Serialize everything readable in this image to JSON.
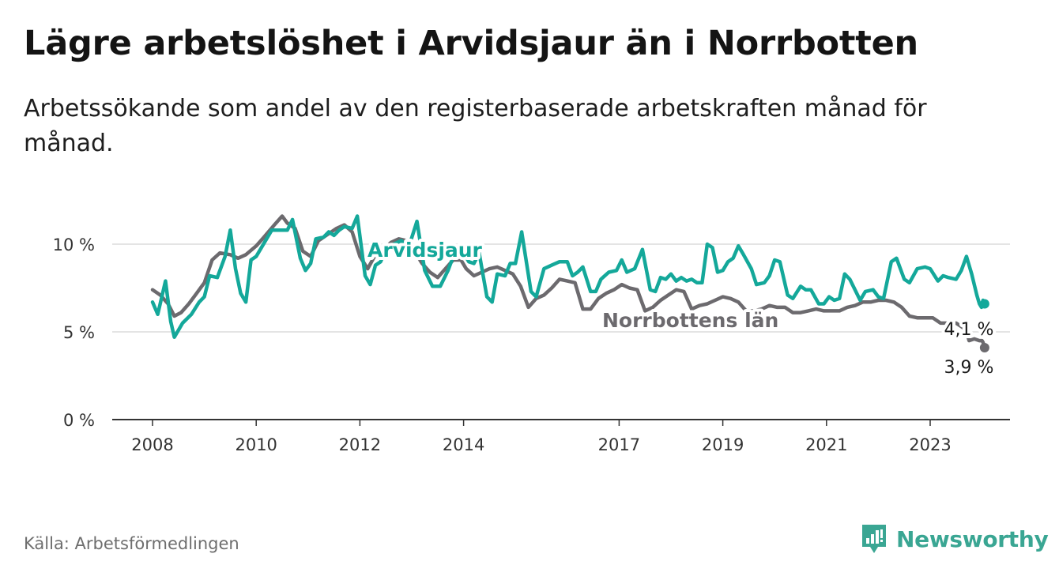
{
  "title": "Lägre arbetslöshet i Arvidsjaur än i Norrbotten",
  "subtitle": "Arbetssökande som andel av den registerbaserade arbetskraften månad för månad.",
  "source": "Källa: Arbetsförmedlingen",
  "brand": {
    "name": "Newsworthy",
    "icon": "newsworthy-logo-icon",
    "color": "#3aa693"
  },
  "chart_data": {
    "type": "line",
    "title": "Lägre arbetslöshet i Arvidsjaur än i Norrbotten",
    "xlabel": "",
    "ylabel": "",
    "ylim": [
      0,
      10
    ],
    "xlim": [
      2008.0,
      2024.05
    ],
    "grid": true,
    "y_ticks": [
      0,
      5,
      10
    ],
    "y_tick_labels": [
      "0 %",
      "5 %",
      "10 %"
    ],
    "x_ticks": [
      2008,
      2010,
      2012,
      2014,
      2017,
      2019,
      2021,
      2023
    ],
    "x_tick_labels": [
      "2008",
      "2010",
      "2012",
      "2014",
      "2017",
      "2019",
      "2021",
      "2023"
    ],
    "series": [
      {
        "name": "Arvidsjaur",
        "label": "Arvidsjaur",
        "color": "#14a89a",
        "end_label": "3,9 %",
        "points": [
          [
            2008.0,
            6.7
          ],
          [
            2008.1,
            6.0
          ],
          [
            2008.25,
            7.9
          ],
          [
            2008.35,
            5.6
          ],
          [
            2008.42,
            4.7
          ],
          [
            2008.58,
            5.5
          ],
          [
            2008.75,
            6.0
          ],
          [
            2008.9,
            6.7
          ],
          [
            2009.0,
            7.0
          ],
          [
            2009.1,
            8.2
          ],
          [
            2009.25,
            8.1
          ],
          [
            2009.4,
            9.3
          ],
          [
            2009.5,
            10.8
          ],
          [
            2009.6,
            8.6
          ],
          [
            2009.7,
            7.2
          ],
          [
            2009.8,
            6.7
          ],
          [
            2009.9,
            9.1
          ],
          [
            2010.0,
            9.3
          ],
          [
            2010.2,
            10.3
          ],
          [
            2010.3,
            10.8
          ],
          [
            2010.4,
            10.8
          ],
          [
            2010.5,
            10.8
          ],
          [
            2010.6,
            10.8
          ],
          [
            2010.7,
            11.4
          ],
          [
            2010.85,
            9.2
          ],
          [
            2010.95,
            8.5
          ],
          [
            2011.05,
            8.9
          ],
          [
            2011.15,
            10.3
          ],
          [
            2011.3,
            10.4
          ],
          [
            2011.4,
            10.7
          ],
          [
            2011.5,
            10.5
          ],
          [
            2011.6,
            10.8
          ],
          [
            2011.7,
            11.0
          ],
          [
            2011.85,
            10.9
          ],
          [
            2011.95,
            11.6
          ],
          [
            2012.1,
            8.2
          ],
          [
            2012.2,
            7.7
          ],
          [
            2012.3,
            8.8
          ],
          [
            2012.4,
            9.0
          ],
          [
            2012.5,
            9.7
          ],
          [
            2012.65,
            10.0
          ],
          [
            2012.8,
            10.2
          ],
          [
            2012.9,
            9.9
          ],
          [
            2012.95,
            9.9
          ],
          [
            2013.1,
            11.3
          ],
          [
            2013.25,
            8.5
          ],
          [
            2013.4,
            7.6
          ],
          [
            2013.55,
            7.6
          ],
          [
            2013.7,
            8.5
          ],
          [
            2013.8,
            9.3
          ],
          [
            2013.9,
            9.5
          ],
          [
            2014.0,
            9.5
          ],
          [
            2014.1,
            9.0
          ],
          [
            2014.2,
            8.9
          ],
          [
            2014.3,
            9.5
          ],
          [
            2014.45,
            7.0
          ],
          [
            2014.55,
            6.7
          ],
          [
            2014.65,
            8.3
          ],
          [
            2014.8,
            8.2
          ],
          [
            2014.9,
            8.9
          ],
          [
            2015.0,
            8.9
          ],
          [
            2015.12,
            10.7
          ],
          [
            2015.3,
            7.3
          ],
          [
            2015.4,
            7.0
          ],
          [
            2015.55,
            8.6
          ],
          [
            2015.7,
            8.8
          ],
          [
            2015.85,
            9.0
          ],
          [
            2016.0,
            9.0
          ],
          [
            2016.1,
            8.2
          ],
          [
            2016.2,
            8.4
          ],
          [
            2016.3,
            8.7
          ],
          [
            2016.45,
            7.3
          ],
          [
            2016.55,
            7.3
          ],
          [
            2016.65,
            8.0
          ],
          [
            2016.8,
            8.4
          ],
          [
            2016.95,
            8.5
          ],
          [
            2017.05,
            9.1
          ],
          [
            2017.15,
            8.4
          ],
          [
            2017.3,
            8.6
          ],
          [
            2017.45,
            9.7
          ],
          [
            2017.6,
            7.4
          ],
          [
            2017.7,
            7.3
          ],
          [
            2017.8,
            8.1
          ],
          [
            2017.9,
            8.0
          ],
          [
            2018.0,
            8.3
          ],
          [
            2018.1,
            7.9
          ],
          [
            2018.2,
            8.1
          ],
          [
            2018.3,
            7.9
          ],
          [
            2018.4,
            8.0
          ],
          [
            2018.5,
            7.8
          ],
          [
            2018.6,
            7.8
          ],
          [
            2018.7,
            10.0
          ],
          [
            2018.8,
            9.8
          ],
          [
            2018.9,
            8.4
          ],
          [
            2019.0,
            8.5
          ],
          [
            2019.1,
            9.0
          ],
          [
            2019.2,
            9.2
          ],
          [
            2019.3,
            9.9
          ],
          [
            2019.4,
            9.4
          ],
          [
            2019.55,
            8.6
          ],
          [
            2019.65,
            7.7
          ],
          [
            2019.8,
            7.8
          ],
          [
            2019.9,
            8.2
          ],
          [
            2020.0,
            9.1
          ],
          [
            2020.1,
            9.0
          ],
          [
            2020.25,
            7.1
          ],
          [
            2020.35,
            6.9
          ],
          [
            2020.5,
            7.6
          ],
          [
            2020.6,
            7.4
          ],
          [
            2020.7,
            7.4
          ],
          [
            2020.85,
            6.6
          ],
          [
            2020.95,
            6.6
          ],
          [
            2021.05,
            7.0
          ],
          [
            2021.15,
            6.8
          ],
          [
            2021.25,
            6.9
          ],
          [
            2021.35,
            8.3
          ],
          [
            2021.45,
            8.0
          ],
          [
            2021.55,
            7.4
          ],
          [
            2021.65,
            6.8
          ],
          [
            2021.75,
            7.3
          ],
          [
            2021.9,
            7.4
          ],
          [
            2022.0,
            7.0
          ],
          [
            2022.1,
            6.9
          ],
          [
            2022.25,
            9.0
          ],
          [
            2022.35,
            9.2
          ],
          [
            2022.5,
            8.0
          ],
          [
            2022.6,
            7.8
          ],
          [
            2022.75,
            8.6
          ],
          [
            2022.9,
            8.7
          ],
          [
            2023.0,
            8.6
          ],
          [
            2023.15,
            7.9
          ],
          [
            2023.25,
            8.2
          ],
          [
            2023.35,
            8.1
          ],
          [
            2023.5,
            8.0
          ],
          [
            2023.6,
            8.5
          ],
          [
            2023.7,
            9.3
          ],
          [
            2023.8,
            8.3
          ],
          [
            2023.9,
            7.1
          ],
          [
            2023.95,
            6.6
          ],
          [
            2023.99,
            6.4
          ],
          [
            2024.0,
            6.6
          ],
          [
            2024.02,
            6.8
          ],
          [
            2024.05,
            6.6
          ]
        ]
      },
      {
        "name": "Norrbottens län",
        "label": "Norrbottens län",
        "color": "#6c6a6e",
        "end_label": "4,1 %",
        "points": [
          [
            2008.0,
            7.4
          ],
          [
            2008.15,
            7.1
          ],
          [
            2008.3,
            6.6
          ],
          [
            2008.42,
            5.9
          ],
          [
            2008.55,
            6.1
          ],
          [
            2008.7,
            6.6
          ],
          [
            2008.85,
            7.2
          ],
          [
            2009.0,
            7.8
          ],
          [
            2009.15,
            9.1
          ],
          [
            2009.3,
            9.5
          ],
          [
            2009.5,
            9.4
          ],
          [
            2009.65,
            9.2
          ],
          [
            2009.8,
            9.4
          ],
          [
            2010.0,
            9.9
          ],
          [
            2010.15,
            10.4
          ],
          [
            2010.35,
            11.1
          ],
          [
            2010.5,
            11.6
          ],
          [
            2010.6,
            11.2
          ],
          [
            2010.75,
            10.9
          ],
          [
            2010.9,
            9.6
          ],
          [
            2011.05,
            9.3
          ],
          [
            2011.2,
            10.2
          ],
          [
            2011.4,
            10.6
          ],
          [
            2011.55,
            10.9
          ],
          [
            2011.7,
            11.1
          ],
          [
            2011.85,
            10.7
          ],
          [
            2012.0,
            9.3
          ],
          [
            2012.15,
            8.6
          ],
          [
            2012.3,
            9.4
          ],
          [
            2012.45,
            9.7
          ],
          [
            2012.6,
            10.1
          ],
          [
            2012.75,
            10.3
          ],
          [
            2012.9,
            10.2
          ],
          [
            2013.05,
            9.6
          ],
          [
            2013.2,
            8.9
          ],
          [
            2013.35,
            8.4
          ],
          [
            2013.5,
            8.1
          ],
          [
            2013.65,
            8.6
          ],
          [
            2013.8,
            9.1
          ],
          [
            2013.95,
            9.1
          ],
          [
            2014.05,
            8.6
          ],
          [
            2014.2,
            8.2
          ],
          [
            2014.35,
            8.4
          ],
          [
            2014.5,
            8.6
          ],
          [
            2014.65,
            8.7
          ],
          [
            2014.8,
            8.5
          ],
          [
            2014.95,
            8.3
          ],
          [
            2015.1,
            7.6
          ],
          [
            2015.25,
            6.4
          ],
          [
            2015.4,
            6.9
          ],
          [
            2015.55,
            7.1
          ],
          [
            2015.7,
            7.5
          ],
          [
            2015.85,
            8.0
          ],
          [
            2016.0,
            7.9
          ],
          [
            2016.15,
            7.8
          ],
          [
            2016.3,
            6.3
          ],
          [
            2016.45,
            6.3
          ],
          [
            2016.6,
            6.9
          ],
          [
            2016.75,
            7.2
          ],
          [
            2016.9,
            7.4
          ],
          [
            2017.05,
            7.7
          ],
          [
            2017.2,
            7.5
          ],
          [
            2017.35,
            7.4
          ],
          [
            2017.5,
            6.2
          ],
          [
            2017.65,
            6.4
          ],
          [
            2017.8,
            6.8
          ],
          [
            2017.95,
            7.1
          ],
          [
            2018.1,
            7.4
          ],
          [
            2018.25,
            7.3
          ],
          [
            2018.4,
            6.3
          ],
          [
            2018.55,
            6.5
          ],
          [
            2018.7,
            6.6
          ],
          [
            2018.85,
            6.8
          ],
          [
            2019.0,
            7.0
          ],
          [
            2019.15,
            6.9
          ],
          [
            2019.3,
            6.7
          ],
          [
            2019.45,
            6.2
          ],
          [
            2019.6,
            6.2
          ],
          [
            2019.75,
            6.3
          ],
          [
            2019.9,
            6.5
          ],
          [
            2020.05,
            6.4
          ],
          [
            2020.2,
            6.4
          ],
          [
            2020.35,
            6.1
          ],
          [
            2020.5,
            6.1
          ],
          [
            2020.65,
            6.2
          ],
          [
            2020.8,
            6.3
          ],
          [
            2020.95,
            6.2
          ],
          [
            2021.1,
            6.2
          ],
          [
            2021.25,
            6.2
          ],
          [
            2021.4,
            6.4
          ],
          [
            2021.55,
            6.5
          ],
          [
            2021.7,
            6.7
          ],
          [
            2021.85,
            6.7
          ],
          [
            2022.0,
            6.8
          ],
          [
            2022.15,
            6.8
          ],
          [
            2022.3,
            6.7
          ],
          [
            2022.45,
            6.4
          ],
          [
            2022.6,
            5.9
          ],
          [
            2022.75,
            5.8
          ],
          [
            2022.9,
            5.8
          ],
          [
            2023.05,
            5.8
          ],
          [
            2023.2,
            5.5
          ],
          [
            2023.35,
            5.5
          ],
          [
            2023.5,
            5.5
          ],
          [
            2023.6,
            5.3
          ],
          [
            2023.7,
            5.1
          ],
          [
            2023.75,
            4.5
          ],
          [
            2023.85,
            4.6
          ],
          [
            2023.95,
            4.5
          ],
          [
            2024.0,
            4.5
          ],
          [
            2024.02,
            4.4
          ],
          [
            2024.05,
            4.1
          ]
        ]
      }
    ]
  }
}
